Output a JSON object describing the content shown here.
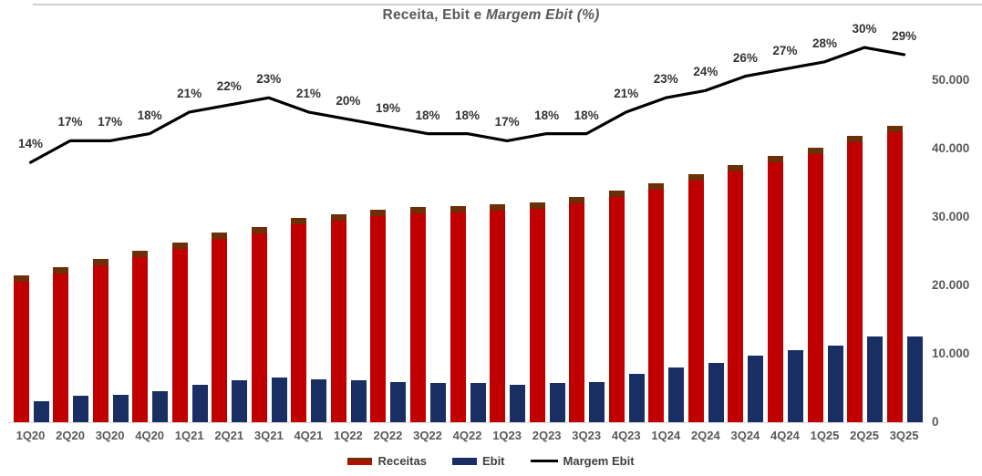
{
  "page": {
    "title_regular": "Receita, Ebit e ",
    "title_italic": "Margem Ebit (%)"
  },
  "chart_data": {
    "type": "bar",
    "subtype": "grouped bars with overlaid line (secondary hidden percent axis)",
    "title": "Receita, Ebit e Margem Ebit (%)",
    "categories": [
      "1Q20",
      "2Q20",
      "3Q20",
      "4Q20",
      "1Q21",
      "2Q21",
      "3Q21",
      "4Q21",
      "1Q22",
      "2Q22",
      "3Q22",
      "4Q22",
      "1Q23",
      "2Q23",
      "3Q23",
      "4Q23",
      "1Q24",
      "2Q24",
      "3Q24",
      "4Q24",
      "1Q25",
      "2Q25",
      "3Q25"
    ],
    "series": [
      {
        "name": "Receitas",
        "type": "bar",
        "color": "#c00000",
        "cap_color": "#6e2e08",
        "values": [
          21400,
          22700,
          23800,
          25100,
          26300,
          27700,
          28500,
          29800,
          30400,
          31100,
          31500,
          31600,
          31900,
          32100,
          32900,
          33800,
          34900,
          36200,
          37600,
          38900,
          40100,
          41800,
          43300
        ]
      },
      {
        "name": "Ebit",
        "type": "bar",
        "color": "#192f63",
        "values": [
          3000,
          3860,
          4050,
          4520,
          5520,
          6090,
          6560,
          6260,
          6080,
          5910,
          5670,
          5690,
          5420,
          5780,
          5920,
          7100,
          8030,
          8690,
          9780,
          10500,
          11230,
          12540,
          12560
        ]
      },
      {
        "name": "Margem Ebit",
        "type": "line",
        "color": "#000000",
        "values_pct": [
          14,
          17,
          17,
          18,
          21,
          22,
          23,
          21,
          20,
          19,
          18,
          18,
          17,
          18,
          18,
          21,
          23,
          24,
          26,
          27,
          28,
          30,
          29
        ],
        "labels": [
          "14%",
          "17%",
          "17%",
          "18%",
          "21%",
          "22%",
          "23%",
          "21%",
          "20%",
          "19%",
          "18%",
          "18%",
          "17%",
          "18%",
          "18%",
          "21%",
          "23%",
          "24%",
          "26%",
          "27%",
          "28%",
          "30%",
          "29%"
        ]
      }
    ],
    "value_axis": {
      "side": "right",
      "ticks": [
        "50.000",
        "40.000",
        "30.000",
        "20.000",
        "10.000",
        "0"
      ],
      "tick_values": [
        50000,
        40000,
        30000,
        20000,
        10000,
        0
      ],
      "ylim": [
        0,
        50000
      ],
      "grid": false
    },
    "legend_position": "bottom"
  }
}
